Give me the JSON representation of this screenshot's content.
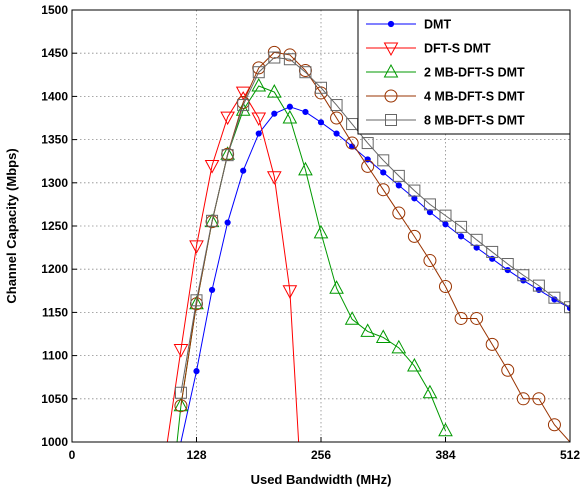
{
  "chart_data": {
    "type": "line",
    "xlabel": "Used Bandwidth (MHz)",
    "ylabel": "Channel Capacity (Mbps)",
    "xlim": [
      0,
      512
    ],
    "ylim": [
      1000,
      1500
    ],
    "xticks": [
      0,
      128,
      256,
      384,
      512
    ],
    "yticks": [
      1000,
      1050,
      1100,
      1150,
      1200,
      1250,
      1300,
      1350,
      1400,
      1450,
      1500
    ],
    "grid": true,
    "legend_position": "top-right",
    "series": [
      {
        "name": "DMT",
        "color": "#0000ff",
        "marker": "dot",
        "x": [
          112,
          128,
          144,
          160,
          176,
          192,
          208,
          224,
          240,
          256,
          272,
          288,
          304,
          320,
          336,
          352,
          368,
          384,
          400,
          416,
          432,
          448,
          464,
          480,
          496,
          512
        ],
        "y": [
          1000,
          1082,
          1176,
          1254,
          1314,
          1357,
          1380,
          1388,
          1382,
          1370,
          1357,
          1342,
          1327,
          1312,
          1297,
          1282,
          1266,
          1252,
          1238,
          1225,
          1212,
          1199,
          1187,
          1176,
          1165,
          1155
        ]
      },
      {
        "name": "DFT-S DMT",
        "color": "#ff0000",
        "marker": "triangle-down",
        "x": [
          98,
          112,
          128,
          144,
          160,
          176,
          192,
          208,
          224,
          233
        ],
        "y": [
          1000,
          1107,
          1227,
          1320,
          1376,
          1405,
          1375,
          1307,
          1175,
          1000
        ]
      },
      {
        "name": "2 MB-DFT-S DMT",
        "color": "#009900",
        "marker": "triangle-up",
        "x": [
          108,
          112,
          128,
          144,
          160,
          176,
          192,
          208,
          224,
          240,
          256,
          272,
          288,
          304,
          320,
          336,
          352,
          368,
          384
        ],
        "y": [
          1000,
          1042,
          1160,
          1255,
          1333,
          1384,
          1412,
          1405,
          1375,
          1315,
          1242,
          1178,
          1142,
          1128,
          1121,
          1109,
          1088,
          1057,
          1013
        ]
      },
      {
        "name": "4 MB-DFT-S DMT",
        "color": "#993300",
        "marker": "circle",
        "x": [
          112,
          128,
          144,
          160,
          176,
          192,
          208,
          224,
          240,
          256,
          272,
          288,
          304,
          320,
          336,
          352,
          368,
          384,
          400,
          416,
          432,
          448,
          464,
          480,
          496,
          512
        ],
        "y": [
          1042,
          1160,
          1255,
          1333,
          1393,
          1433,
          1451,
          1448,
          1430,
          1404,
          1375,
          1346,
          1319,
          1292,
          1265,
          1238,
          1210,
          1180,
          1143,
          1143,
          1113,
          1083,
          1050,
          1050,
          1020,
          1000
        ]
      },
      {
        "name": "8 MB-DFT-S DMT",
        "color": "#666666",
        "marker": "square",
        "x": [
          112,
          128,
          144,
          160,
          176,
          192,
          208,
          224,
          240,
          256,
          272,
          288,
          304,
          320,
          336,
          352,
          368,
          384,
          400,
          416,
          432,
          448,
          464,
          480,
          496,
          512
        ],
        "y": [
          1057,
          1164,
          1256,
          1332,
          1390,
          1428,
          1445,
          1443,
          1428,
          1410,
          1390,
          1368,
          1346,
          1326,
          1308,
          1291,
          1275,
          1262,
          1249,
          1234,
          1220,
          1206,
          1193,
          1181,
          1167,
          1156
        ]
      }
    ]
  }
}
